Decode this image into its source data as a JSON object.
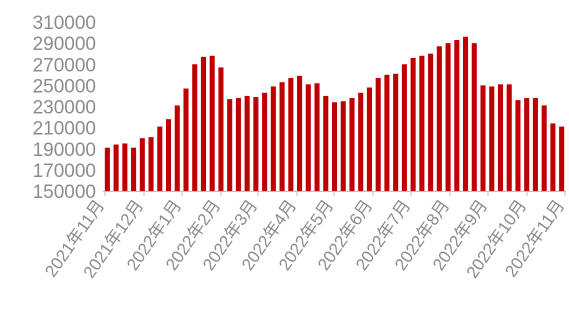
{
  "chart_data": {
    "type": "bar",
    "bar_color": "#c00000",
    "axis_color": "#bfbfbf",
    "tick_color": "#8c8c8c",
    "grid": false,
    "legend": "none",
    "title": "",
    "xlabel": "",
    "ylabel": "",
    "ylim": [
      150000,
      310000
    ],
    "yticks": [
      "150000",
      "170000",
      "190000",
      "210000",
      "230000",
      "250000",
      "270000",
      "290000",
      "310000"
    ],
    "xtick_labels": [
      "2021年11月",
      "2021年12月",
      "2022年1月",
      "2022年2月",
      "2022年3月",
      "2022年4月",
      "2022年5月",
      "2022年6月",
      "2022年7月",
      "2022年8月",
      "2022年9月",
      "2022年10月",
      "2022年11月"
    ],
    "values": [
      191000,
      194000,
      195000,
      191000,
      200000,
      201000,
      211000,
      218000,
      231000,
      247000,
      270000,
      277000,
      278000,
      267000,
      237000,
      238000,
      240000,
      239000,
      243000,
      249000,
      253000,
      257000,
      259000,
      251000,
      252000,
      240000,
      234000,
      235000,
      238000,
      243000,
      248000,
      257000,
      260000,
      261000,
      270000,
      276000,
      278000,
      280000,
      287000,
      290000,
      293000,
      296000,
      290000,
      250000,
      249000,
      251000,
      251000,
      236000,
      238000,
      238000,
      231000,
      214000,
      211000
    ]
  }
}
